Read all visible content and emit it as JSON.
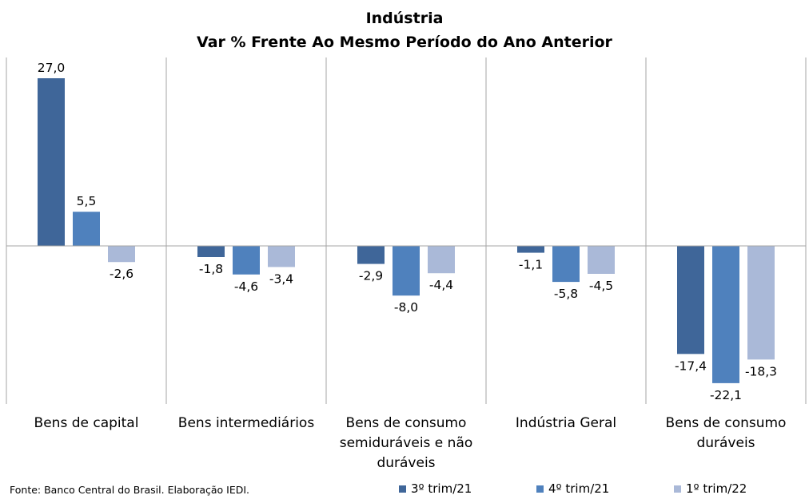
{
  "chart_data": {
    "type": "bar",
    "title": "Indústria",
    "subtitle": "Var % Frente Ao Mesmo Período do Ano Anterior",
    "categories": [
      "Bens de capital",
      "Bens intermediários",
      "Bens de consumo semiduráveis e não duráveis",
      "Indústria Geral",
      "Bens de consumo duráveis"
    ],
    "series": [
      {
        "name": "3º trim/21",
        "color": "#3f6699",
        "values": [
          27.0,
          -1.8,
          -2.9,
          -1.1,
          -17.4
        ]
      },
      {
        "name": "4º trim/21",
        "color": "#4f81bd",
        "values": [
          5.5,
          -4.6,
          -8.0,
          -5.8,
          -22.1
        ]
      },
      {
        "name": "1º trim/22",
        "color": "#aab9d8",
        "values": [
          -2.6,
          -3.4,
          -4.4,
          -4.5,
          -18.3
        ]
      }
    ],
    "data_labels": [
      [
        "27,0",
        "-1,8",
        "-2,9",
        "-1,1",
        "-17,4"
      ],
      [
        "5,5",
        "-4,6",
        "-8,0",
        "-5,8",
        "-22,1"
      ],
      [
        "-2,6",
        "-3,4",
        "-4,4",
        "-4,5",
        "-18,3"
      ]
    ],
    "ylim": [
      -25,
      30
    ],
    "grid": false,
    "legend_position": "bottom-right"
  },
  "source_note": "Fonte: Banco Central do Brasil. Elaboração IEDI."
}
